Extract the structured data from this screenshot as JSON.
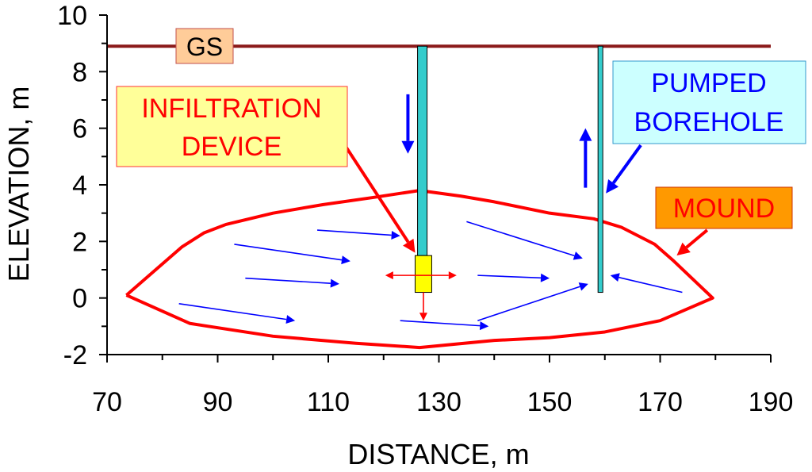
{
  "chart_data": {
    "type": "scatter",
    "xlabel": "DISTANCE, m",
    "ylabel": "ELEVATION, m",
    "xlim": [
      70,
      190
    ],
    "ylim": [
      -2,
      10
    ],
    "x_ticks": [
      "70",
      "90",
      "110",
      "130",
      "150",
      "170",
      "190"
    ],
    "y_ticks": [
      "-2",
      "0",
      "2",
      "4",
      "6",
      "8",
      "10"
    ],
    "grid": false,
    "ground_surface": {
      "label": "GS",
      "elevation": 8.9,
      "color": "#8b1a1a"
    },
    "mound": {
      "label": "MOUND",
      "color": "#ff0000",
      "points": [
        [
          73.5,
          0.1
        ],
        [
          83.5,
          1.8
        ],
        [
          87.5,
          2.3
        ],
        [
          91.5,
          2.6
        ],
        [
          100,
          3.0
        ],
        [
          109,
          3.3
        ],
        [
          118,
          3.55
        ],
        [
          126.5,
          3.8
        ],
        [
          134,
          3.6
        ],
        [
          140,
          3.4
        ],
        [
          150,
          3.0
        ],
        [
          158,
          2.8
        ],
        [
          163,
          2.5
        ],
        [
          169,
          1.9
        ],
        [
          172.5,
          1.3
        ],
        [
          179.5,
          0
        ],
        [
          170,
          -0.8
        ],
        [
          160,
          -1.2
        ],
        [
          150,
          -1.4
        ],
        [
          140,
          -1.5
        ],
        [
          126.5,
          -1.75
        ],
        [
          115,
          -1.6
        ],
        [
          100,
          -1.35
        ],
        [
          85,
          -0.9
        ],
        [
          73.5,
          0.1
        ]
      ]
    },
    "infiltration_device": {
      "label_lines": [
        "INFILTRATION",
        "DEVICE"
      ],
      "text_color": "#ff0000",
      "box_color": "#ffff99",
      "casing": {
        "x": 127,
        "top": 8.9,
        "bottom": 1.5
      },
      "device": {
        "x_left": 125.7,
        "x_right": 128.7,
        "top": 1.5,
        "bottom": 0.2
      },
      "down_arrow": {
        "x": 124.4,
        "y_from": 7.2,
        "y_to": 5.1
      }
    },
    "pumped_borehole": {
      "label_lines": [
        "PUMPED",
        "BOREHOLE"
      ],
      "text_color": "#0000ff",
      "box_color": "#ccffff",
      "x": 159.2,
      "top": 8.9,
      "bottom": 0.2,
      "up_arrow": {
        "x": 156.5,
        "y_from": 3.9,
        "y_to": 6.0
      }
    },
    "flow_arrows": [
      {
        "from": [
          108,
          2.4
        ],
        "to": [
          123,
          2.2
        ]
      },
      {
        "from": [
          93,
          1.9
        ],
        "to": [
          114,
          1.3
        ]
      },
      {
        "from": [
          95,
          0.7
        ],
        "to": [
          112,
          0.5
        ]
      },
      {
        "from": [
          83,
          -0.2
        ],
        "to": [
          104,
          -0.8
        ]
      },
      {
        "from": [
          123,
          -0.8
        ],
        "to": [
          139,
          -1.0
        ]
      },
      {
        "from": [
          135,
          2.7
        ],
        "to": [
          156,
          1.4
        ]
      },
      {
        "from": [
          137,
          0.8
        ],
        "to": [
          150,
          0.7
        ]
      },
      {
        "from": [
          137,
          -0.8
        ],
        "to": [
          157,
          0.5
        ]
      },
      {
        "from": [
          174,
          0.2
        ],
        "to": [
          161,
          0.8
        ]
      }
    ],
    "device_outflow_arrows": [
      {
        "from": [
          127.2,
          0.8
        ],
        "to": [
          120.3,
          0.8
        ]
      },
      {
        "from": [
          127.2,
          0.8
        ],
        "to": [
          133.2,
          0.8
        ]
      },
      {
        "from": [
          127.2,
          0.2
        ],
        "to": [
          127.2,
          -0.8
        ]
      }
    ],
    "pointer_arrows": [
      {
        "target": "infiltration",
        "from": [
          113,
          5.4
        ],
        "to": [
          125.7,
          1.6
        ],
        "color": "#ff0000"
      },
      {
        "target": "borehole",
        "from": [
          166.5,
          5.4
        ],
        "to": [
          160.2,
          3.7
        ],
        "color": "#0000ff"
      },
      {
        "target": "mound",
        "from": [
          178.5,
          2.4
        ],
        "to": [
          173,
          1.5
        ],
        "color": "#ff0000"
      }
    ],
    "colors": {
      "axis": "#000000",
      "flow": "#0000ff",
      "casing_fill": "#33cccc",
      "device_fill": "#ffff00",
      "gs_box": "#ffcc99",
      "mound_box": "#ff9900"
    }
  }
}
